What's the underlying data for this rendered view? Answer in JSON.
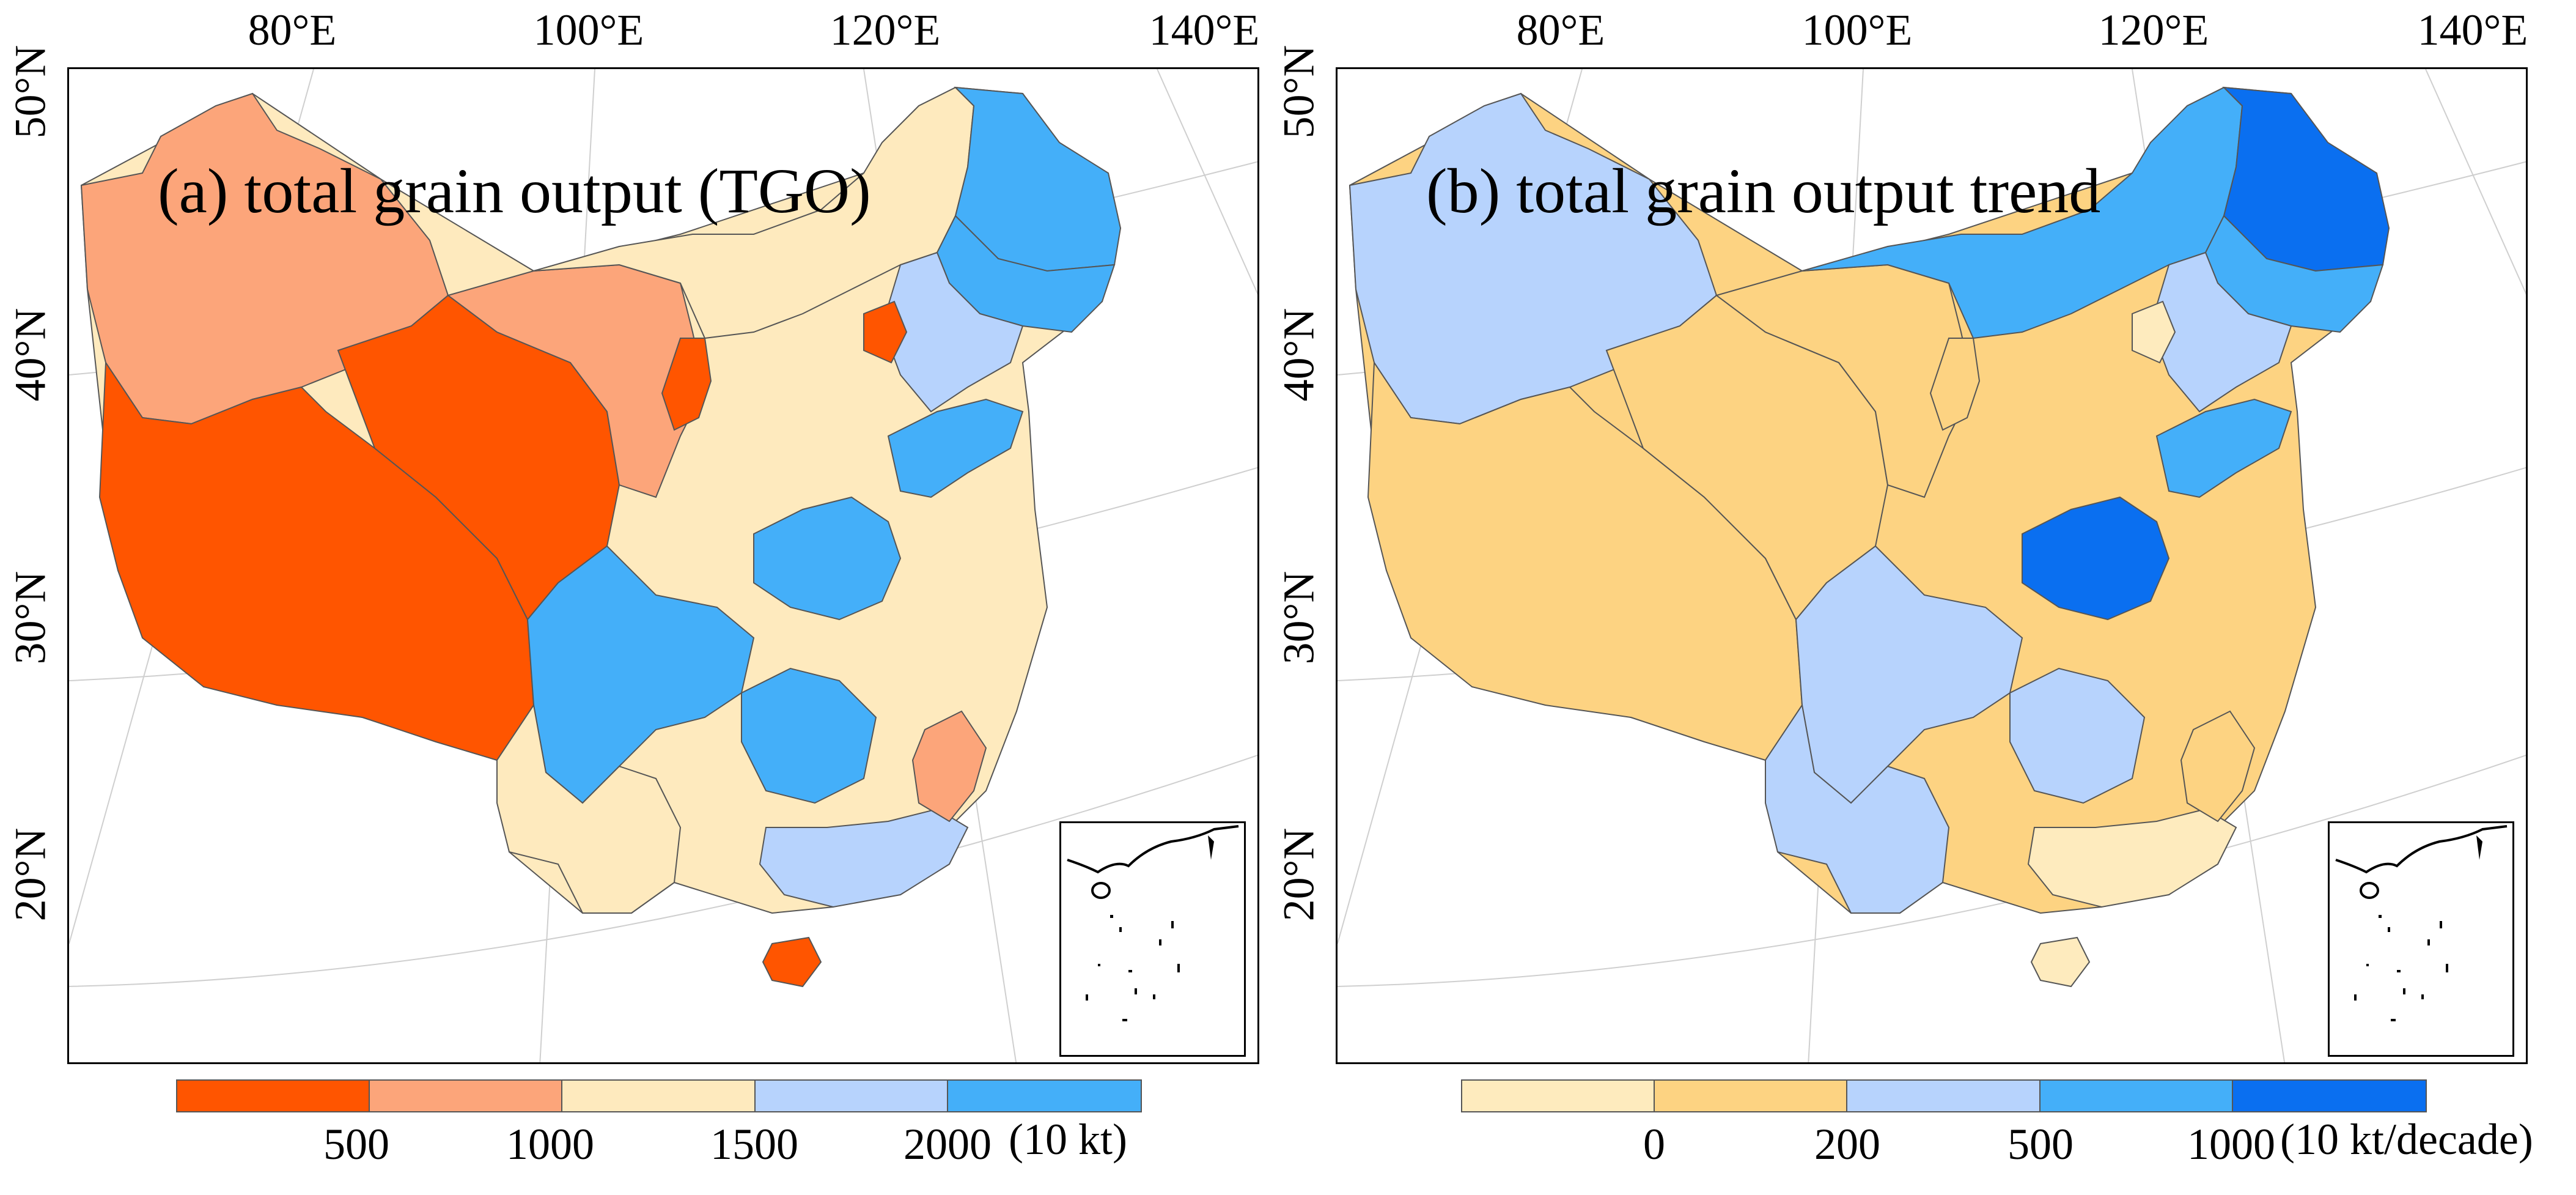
{
  "colors": {
    "tgo": [
      "#ff5500",
      "#fca57a",
      "#feeabe",
      "#b7d3fd",
      "#44aff9"
    ],
    "trend": [
      "#feebbe",
      "#fdd382",
      "#b7d3fd",
      "#44aff9",
      "#0a6ff0"
    ],
    "graticule": "#cfcfcf",
    "border": "#555555"
  },
  "axes": {
    "lon_ticks": [
      "80°E",
      "100°E",
      "120°E",
      "140°E"
    ],
    "lat_ticks": [
      "50°N",
      "40°N",
      "30°N",
      "20°N"
    ]
  },
  "panels": [
    {
      "id": "a",
      "title": "(a)  total grain output (TGO)",
      "legend": {
        "ticks": [
          "500",
          "1000",
          "1500",
          "2000"
        ],
        "unit": "(10 kt)"
      },
      "regions": [
        {
          "name": "Xinjiang",
          "cls": 1
        },
        {
          "name": "Tibet",
          "cls": 0
        },
        {
          "name": "Qinghai",
          "cls": 0
        },
        {
          "name": "Gansu",
          "cls": 1
        },
        {
          "name": "Inner Mongolia",
          "cls": 2
        },
        {
          "name": "Heilongjiang",
          "cls": 4
        },
        {
          "name": "Jilin",
          "cls": 4
        },
        {
          "name": "Liaoning",
          "cls": 3
        },
        {
          "name": "Sichuan",
          "cls": 4
        },
        {
          "name": "Yunnan",
          "cls": 2
        },
        {
          "name": "Henan",
          "cls": 4
        },
        {
          "name": "Shandong",
          "cls": 4
        },
        {
          "name": "Hunan",
          "cls": 4
        },
        {
          "name": "Guangdong",
          "cls": 3
        },
        {
          "name": "Hainan",
          "cls": 0
        },
        {
          "name": "Ningxia",
          "cls": 0
        },
        {
          "name": "Beijing",
          "cls": 0
        },
        {
          "name": "Fujian",
          "cls": 1
        }
      ]
    },
    {
      "id": "b",
      "title": "(b) total grain output trend",
      "legend": {
        "ticks": [
          "0",
          "200",
          "500",
          "1000"
        ],
        "unit": "(10 kt/decade)"
      },
      "regions": [
        {
          "name": "Xinjiang",
          "cls": 2
        },
        {
          "name": "Tibet",
          "cls": 1
        },
        {
          "name": "Qinghai",
          "cls": 1
        },
        {
          "name": "Gansu",
          "cls": 1
        },
        {
          "name": "Inner Mongolia",
          "cls": 3
        },
        {
          "name": "Heilongjiang",
          "cls": 4
        },
        {
          "name": "Jilin",
          "cls": 3
        },
        {
          "name": "Liaoning",
          "cls": 2
        },
        {
          "name": "Sichuan",
          "cls": 2
        },
        {
          "name": "Yunnan",
          "cls": 2
        },
        {
          "name": "Henan",
          "cls": 4
        },
        {
          "name": "Shandong",
          "cls": 3
        },
        {
          "name": "Hunan",
          "cls": 2
        },
        {
          "name": "Guangdong",
          "cls": 0
        },
        {
          "name": "Hainan",
          "cls": 0
        },
        {
          "name": "Ningxia",
          "cls": 1
        },
        {
          "name": "Beijing",
          "cls": 0
        },
        {
          "name": "Fujian",
          "cls": 1
        }
      ]
    }
  ]
}
